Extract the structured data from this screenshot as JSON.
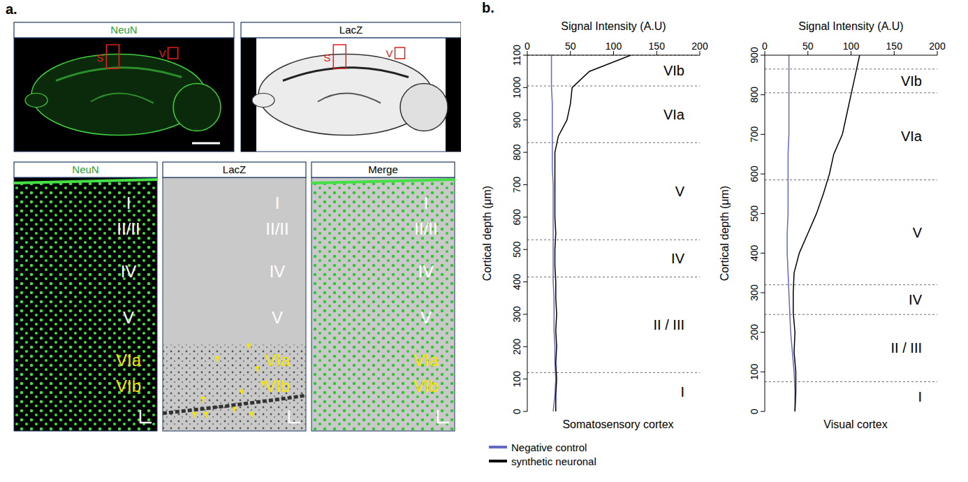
{
  "panel_a": {
    "label": "a.",
    "overview": [
      {
        "title": "NeuN",
        "title_color": "#2e9e2e",
        "regions": [
          "S",
          "V"
        ]
      },
      {
        "title": "LacZ",
        "title_color": "#000000",
        "regions": [
          "S",
          "V"
        ]
      }
    ],
    "detail": {
      "panels": [
        {
          "title": "NeuN",
          "title_color": "#2e9e2e"
        },
        {
          "title": "LacZ",
          "title_color": "#000000"
        },
        {
          "title": "Merge",
          "title_color": "#000000"
        }
      ],
      "layers": [
        {
          "label": "I",
          "color": "#ffffff"
        },
        {
          "label": "II/II",
          "color": "#ffffff"
        },
        {
          "label": "IV",
          "color": "#ffffff"
        },
        {
          "label": "V",
          "color": "#ffffff"
        },
        {
          "label": "VIa",
          "color": "#f5e400"
        },
        {
          "label": "VIb",
          "color": "#f5e400"
        }
      ]
    }
  },
  "panel_b_label": "b.",
  "chart_data": [
    {
      "type": "line",
      "title": "Somatosensory cortex",
      "x_label": "Signal Intensity (A.U)",
      "y_label": "Cortical depth (μm)",
      "xlim": [
        0,
        200
      ],
      "xticks": [
        0,
        50,
        100,
        150,
        200
      ],
      "ylim": [
        0,
        1100
      ],
      "yticks": [
        0,
        100,
        200,
        300,
        400,
        500,
        600,
        700,
        800,
        900,
        1000,
        1100
      ],
      "legend": "bottom",
      "y": [
        0,
        50,
        100,
        150,
        200,
        250,
        300,
        350,
        400,
        450,
        500,
        550,
        600,
        650,
        700,
        750,
        800,
        850,
        900,
        950,
        1000,
        1050,
        1100
      ],
      "series": [
        {
          "name": "Negative control",
          "color": "#6268c4",
          "values": [
            30,
            32,
            33,
            32,
            32,
            31,
            31,
            31,
            30,
            30,
            30,
            30,
            30,
            30,
            30,
            29,
            29,
            29,
            29,
            29,
            28,
            28,
            28
          ]
        },
        {
          "name": "synthetic neuronal",
          "color": "#000000",
          "values": [
            33,
            33,
            34,
            33,
            34,
            33,
            34,
            33,
            33,
            32,
            32,
            33,
            32,
            32,
            32,
            32,
            32,
            36,
            46,
            50,
            52,
            72,
            120
          ]
        }
      ],
      "layers": [
        {
          "label": "I",
          "from": 0,
          "to": 120
        },
        {
          "label": "II / III",
          "from": 120,
          "to": 415
        },
        {
          "label": "IV",
          "from": 415,
          "to": 530
        },
        {
          "label": "V",
          "from": 530,
          "to": 830
        },
        {
          "label": "VIa",
          "from": 830,
          "to": 1005
        },
        {
          "label": "VIb",
          "from": 1005,
          "to": 1100
        }
      ]
    },
    {
      "type": "line",
      "title": "Visual cortex",
      "x_label": "Signal Intensity (A.U)",
      "y_label": "Cortical depth (μm)",
      "xlim": [
        0,
        200
      ],
      "xticks": [
        0,
        50,
        100,
        150,
        200
      ],
      "ylim": [
        0,
        900
      ],
      "yticks": [
        0,
        100,
        200,
        300,
        400,
        500,
        600,
        700,
        800,
        900
      ],
      "y": [
        0,
        50,
        100,
        150,
        200,
        250,
        300,
        350,
        400,
        450,
        500,
        550,
        600,
        650,
        700,
        750,
        800,
        850,
        900
      ],
      "series": [
        {
          "name": "Negative control",
          "color": "#6268c4",
          "values": [
            35,
            35,
            34,
            32,
            30,
            29,
            28,
            27,
            26,
            26,
            27,
            27,
            27,
            27,
            28,
            28,
            28,
            28,
            28
          ]
        },
        {
          "name": "synthetic neuronal",
          "color": "#000000",
          "values": [
            35,
            36,
            36,
            34,
            35,
            33,
            33,
            34,
            40,
            50,
            60,
            68,
            75,
            80,
            90,
            95,
            100,
            105,
            110
          ]
        }
      ],
      "layers": [
        {
          "label": "I",
          "from": 0,
          "to": 75
        },
        {
          "label": "II / III",
          "from": 75,
          "to": 245
        },
        {
          "label": "IV",
          "from": 245,
          "to": 320
        },
        {
          "label": "V",
          "from": 320,
          "to": 585
        },
        {
          "label": "VIa",
          "from": 585,
          "to": 805
        },
        {
          "label": "VIb",
          "from": 805,
          "to": 865
        }
      ]
    }
  ]
}
